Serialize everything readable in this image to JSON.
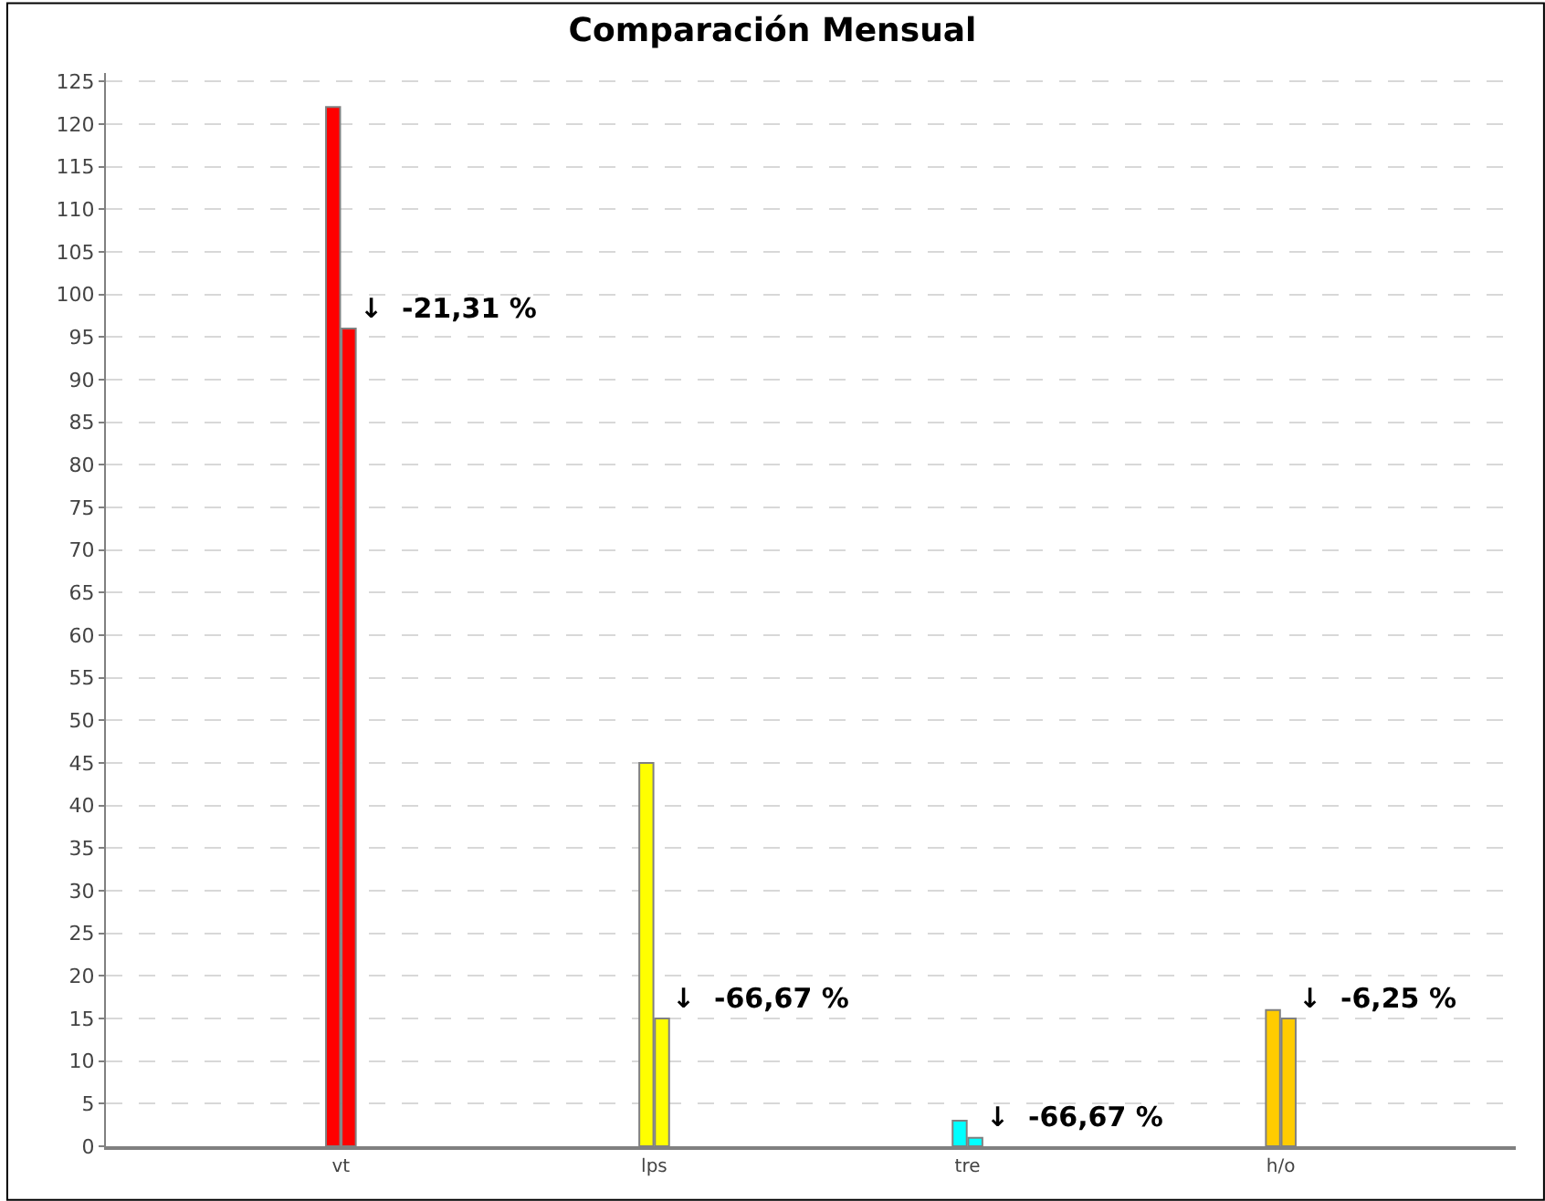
{
  "chart_data": {
    "type": "bar",
    "title": "Comparación Mensual",
    "categories": [
      "vt",
      "lps",
      "tre",
      "h/o"
    ],
    "series": [
      {
        "colors": [
          "#ff0000",
          "#ffff00",
          "#00ffff",
          "#ffcc00"
        ],
        "values": [
          122,
          45,
          3,
          16
        ]
      },
      {
        "colors": [
          "#ff0000",
          "#ffff00",
          "#00ffff",
          "#ffcc00"
        ],
        "values": [
          96,
          15,
          1,
          15
        ]
      }
    ],
    "ylim": [
      0,
      126
    ],
    "yticks": [
      0,
      5,
      10,
      15,
      20,
      25,
      30,
      35,
      40,
      45,
      50,
      55,
      60,
      65,
      70,
      75,
      80,
      85,
      90,
      95,
      100,
      105,
      110,
      115,
      120,
      125
    ],
    "grid": "y",
    "annotations": [
      {
        "text": "↓  -21,31 %",
        "x": "vt",
        "y": 96
      },
      {
        "text": "↓  -66,67 %",
        "x": "lps",
        "y": 15
      },
      {
        "text": "↓  -66,67 %",
        "x": "tre",
        "y": 1
      },
      {
        "text": "↓  -6,25 %",
        "x": "h/o",
        "y": 15
      }
    ]
  }
}
